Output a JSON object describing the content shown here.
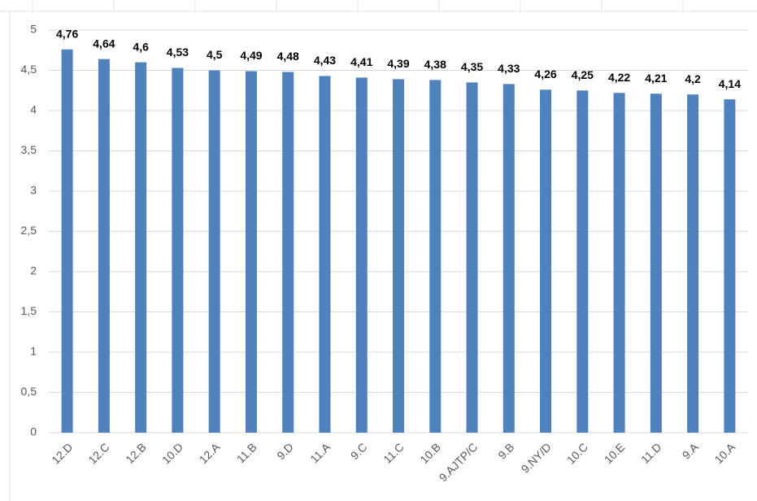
{
  "chart_data": {
    "type": "bar",
    "categories": [
      "12.D",
      "12.C",
      "12.B",
      "10.D",
      "12.A",
      "11.B",
      "9.D",
      "11.A",
      "9.C",
      "11.C",
      "10.B",
      "9.AJTP/C",
      "9.B",
      "9.NY/D",
      "10.C",
      "10.E",
      "11.D",
      "9.A",
      "10.A"
    ],
    "values": [
      4.76,
      4.64,
      4.6,
      4.53,
      4.5,
      4.49,
      4.48,
      4.43,
      4.41,
      4.39,
      4.38,
      4.35,
      4.33,
      4.26,
      4.25,
      4.22,
      4.21,
      4.2,
      4.14
    ],
    "value_labels": [
      "4,76",
      "4,64",
      "4,6",
      "4,53",
      "4,5",
      "4,49",
      "4,48",
      "4,43",
      "4,41",
      "4,39",
      "4,38",
      "4,35",
      "4,33",
      "4,26",
      "4,25",
      "4,22",
      "4,21",
      "4,2",
      "4,14"
    ],
    "color": "#4f81bd",
    "ylim": [
      0,
      5
    ],
    "yticks": [
      0,
      {
        "value": 0.5,
        "label": "0,5"
      },
      1,
      {
        "value": 1.5,
        "label": "1,5"
      },
      2,
      {
        "value": 2.5,
        "label": "2,5"
      },
      3,
      {
        "value": 3.5,
        "label": "3,5"
      },
      4,
      {
        "value": 4.5,
        "label": "4,5"
      },
      5
    ],
    "grid": true
  }
}
